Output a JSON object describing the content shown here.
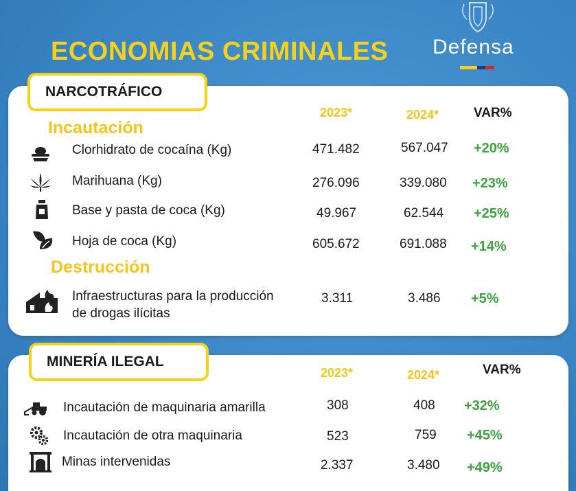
{
  "title": "ECONOMIAS CRIMINALES",
  "logo": {
    "text": "Defensa",
    "flag_colors": [
      "#f5d21a",
      "#1e3a8a",
      "#d62828"
    ]
  },
  "narcotrafico": {
    "section_label": "NARCOTRÁFICO",
    "columns": {
      "year1": "2023*",
      "year2": "2024*",
      "var": "VAR%"
    },
    "incautacion_label": "Incautación",
    "destruccion_label": "Destrucción",
    "rows": [
      {
        "icon": "cocaine-icon",
        "label": "Clorhidrato de cocaína (Kg)",
        "y2023": "471.482",
        "y2024": "567.047",
        "var": "+20%"
      },
      {
        "icon": "cannabis-leaf-icon",
        "label": "Marihuana (Kg)",
        "y2023": "276.096",
        "y2024": "339.080",
        "var": "+23%"
      },
      {
        "icon": "coca-paste-icon",
        "label": "Base y pasta de coca (Kg)",
        "y2023": "49.967",
        "y2024": "62.544",
        "var": "+25%"
      },
      {
        "icon": "coca-leaf-icon",
        "label": "Hoja de coca (Kg)",
        "y2023": "605.672",
        "y2024": "691.088",
        "var": "+14%"
      }
    ],
    "destruccion": {
      "icon": "burning-building-icon",
      "label_line1": "Infraestructuras para la producción",
      "label_line2": "de drogas ilícitas",
      "y2023": "3.311",
      "y2024": "3.486",
      "var": "+5%"
    }
  },
  "mineria": {
    "section_label": "MINERÍA ILEGAL",
    "columns": {
      "year1": "2023*",
      "year2": "2024*",
      "var": "VAR%"
    },
    "rows": [
      {
        "icon": "tractor-icon",
        "label": "Incautación de maquinaria amarilla",
        "y2023": "308",
        "y2024": "408",
        "var": "+32%"
      },
      {
        "icon": "gears-icon",
        "label": "Incautación de otra maquinaria",
        "y2023": "523",
        "y2024": "759",
        "var": "+45%"
      },
      {
        "icon": "mine-entrance-icon",
        "label": "Minas intervenidas",
        "y2023": "2.337",
        "y2024": "3.480",
        "var": "+49%"
      }
    ]
  }
}
